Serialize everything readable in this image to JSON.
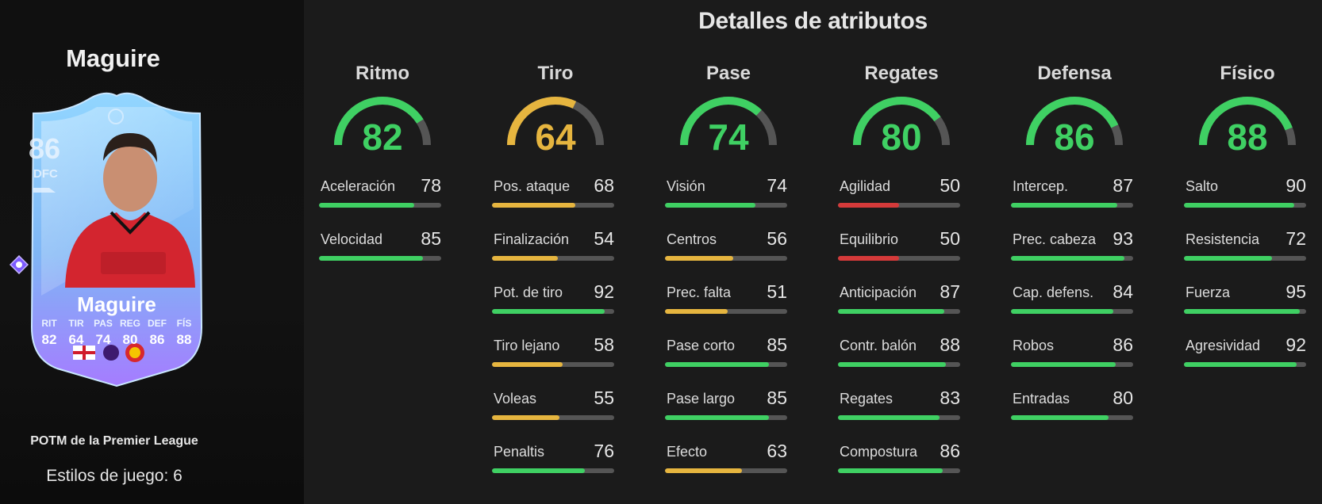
{
  "player": {
    "name": "Maguire",
    "rating": "86",
    "position": "DFC",
    "card_name": "Maguire",
    "stat_labels": [
      "RIT",
      "TIR",
      "PAS",
      "REG",
      "DEF",
      "FÍS"
    ],
    "stat_values": [
      "82",
      "64",
      "74",
      "80",
      "86",
      "88"
    ],
    "card_colors": {
      "top": "#8fd3ff",
      "bottom": "#9f7bff",
      "accent": "#7d5cff"
    }
  },
  "subtitle": "POTM de la Premier League",
  "playstyles_label": "Estilos de juego: 6",
  "title": "Detalles de atributos",
  "colors": {
    "green": "#3fd063",
    "yellow": "#e6b53f",
    "red": "#d53a3a",
    "track": "#555555"
  },
  "categories": [
    {
      "name": "Ritmo",
      "value": 82,
      "stats": [
        {
          "label": "Aceleración",
          "value": 78
        },
        {
          "label": "Velocidad",
          "value": 85
        }
      ]
    },
    {
      "name": "Tiro",
      "value": 64,
      "stats": [
        {
          "label": "Pos. ataque",
          "value": 68
        },
        {
          "label": "Finalización",
          "value": 54
        },
        {
          "label": "Pot. de tiro",
          "value": 92
        },
        {
          "label": "Tiro lejano",
          "value": 58
        },
        {
          "label": "Voleas",
          "value": 55
        },
        {
          "label": "Penaltis",
          "value": 76
        }
      ]
    },
    {
      "name": "Pase",
      "value": 74,
      "stats": [
        {
          "label": "Visión",
          "value": 74
        },
        {
          "label": "Centros",
          "value": 56
        },
        {
          "label": "Prec. falta",
          "value": 51
        },
        {
          "label": "Pase corto",
          "value": 85
        },
        {
          "label": "Pase largo",
          "value": 85
        },
        {
          "label": "Efecto",
          "value": 63
        }
      ]
    },
    {
      "name": "Regates",
      "value": 80,
      "stats": [
        {
          "label": "Agilidad",
          "value": 50
        },
        {
          "label": "Equilibrio",
          "value": 50
        },
        {
          "label": "Anticipación",
          "value": 87
        },
        {
          "label": "Contr. balón",
          "value": 88
        },
        {
          "label": "Regates",
          "value": 83
        },
        {
          "label": "Compostura",
          "value": 86
        }
      ]
    },
    {
      "name": "Defensa",
      "value": 86,
      "stats": [
        {
          "label": "Intercep.",
          "value": 87
        },
        {
          "label": "Prec. cabeza",
          "value": 93
        },
        {
          "label": "Cap. defens.",
          "value": 84
        },
        {
          "label": "Robos",
          "value": 86
        },
        {
          "label": "Entradas",
          "value": 80
        }
      ]
    },
    {
      "name": "Físico",
      "value": 88,
      "stats": [
        {
          "label": "Salto",
          "value": 90
        },
        {
          "label": "Resistencia",
          "value": 72
        },
        {
          "label": "Fuerza",
          "value": 95
        },
        {
          "label": "Agresividad",
          "value": 92
        }
      ]
    }
  ]
}
